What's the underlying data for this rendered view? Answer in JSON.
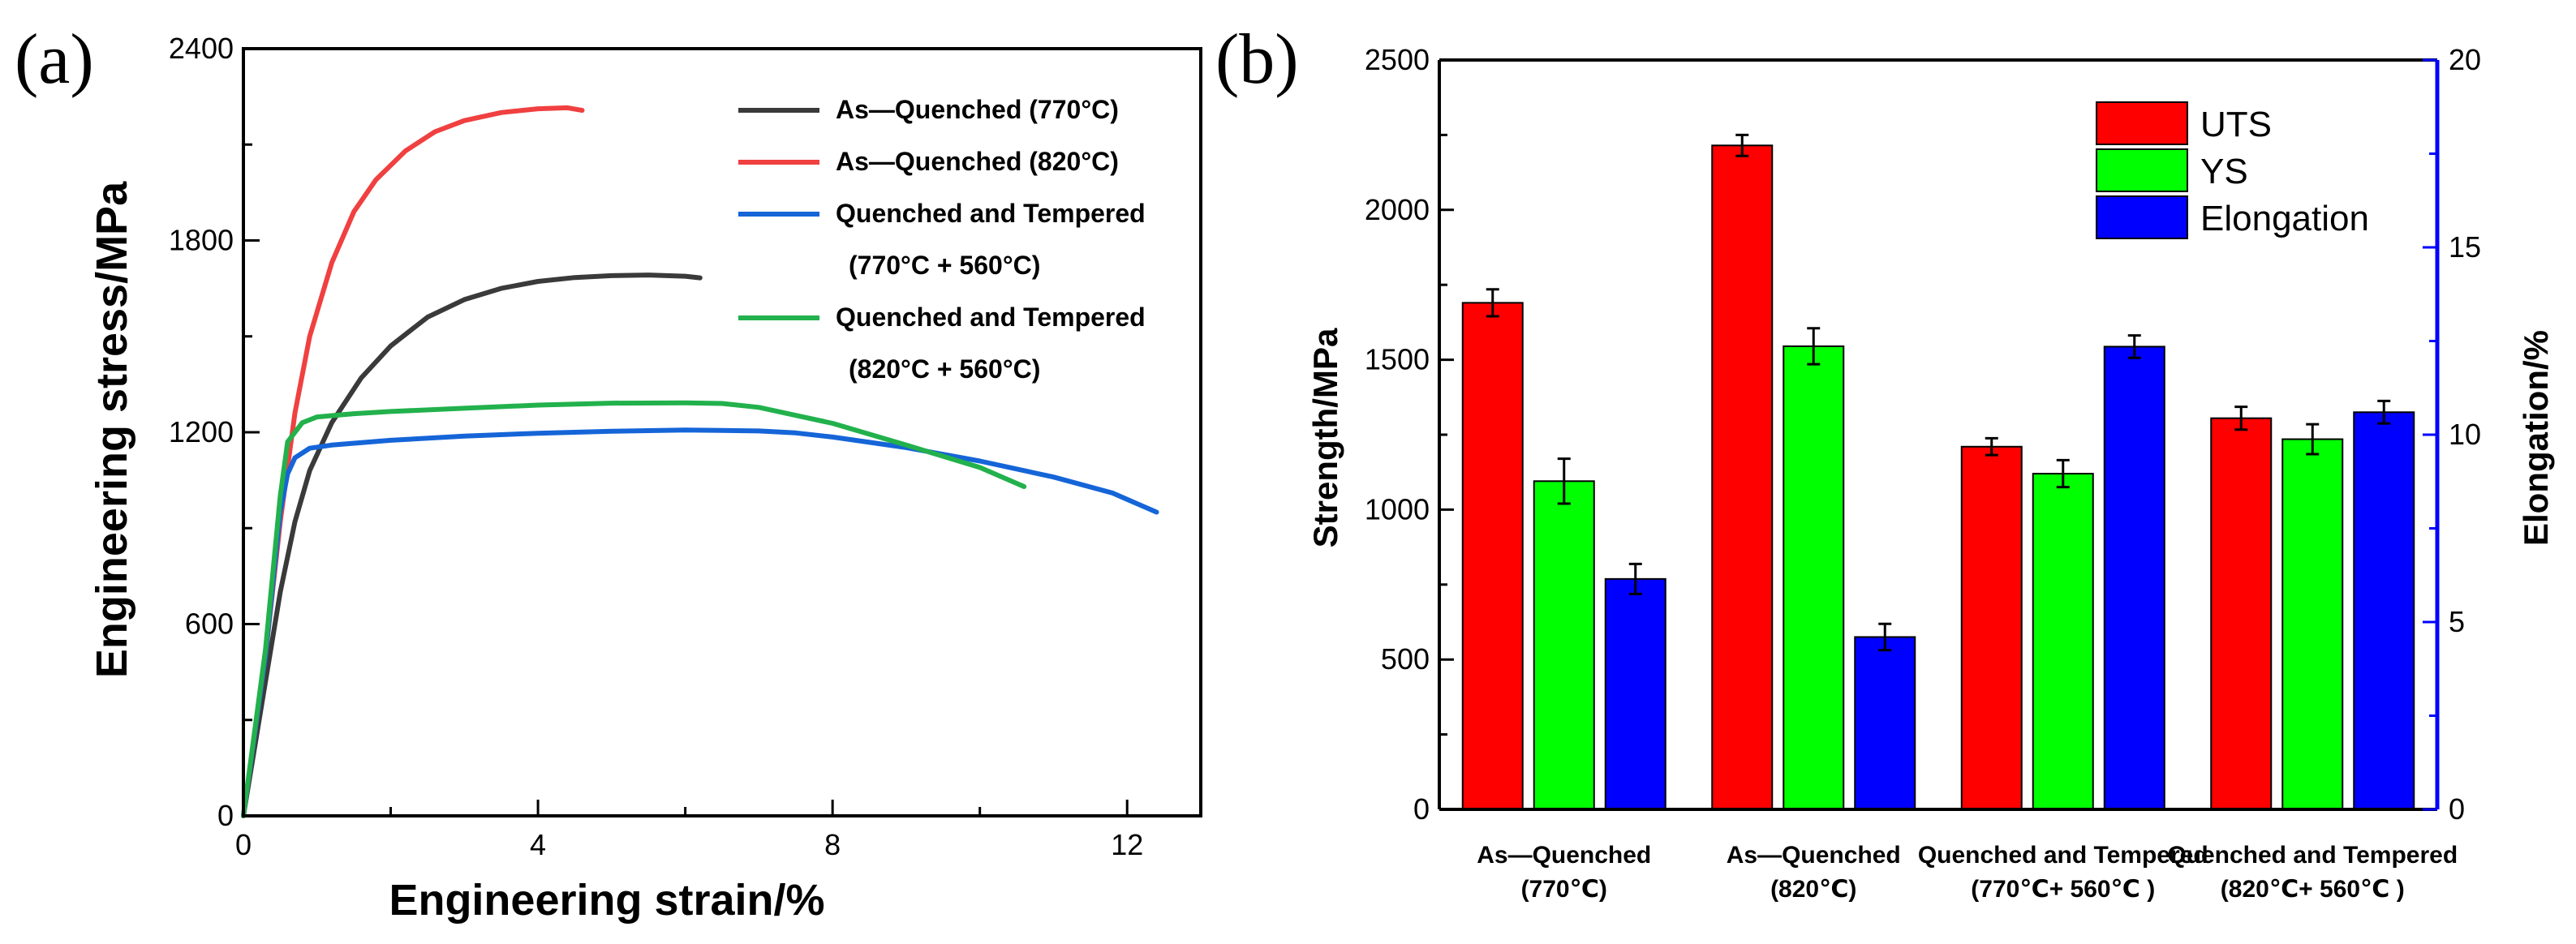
{
  "chart_data": [
    {
      "type": "line",
      "panel_label": "(a)",
      "xlabel": "Engineering strain/%",
      "ylabel": "Engineering stress/MPa",
      "xlim": [
        0,
        13
      ],
      "ylim": [
        0,
        2400
      ],
      "xticks": [
        0,
        4,
        8,
        12
      ],
      "yticks": [
        0,
        600,
        1200,
        1800,
        2400
      ],
      "legend": "top-right",
      "series": [
        {
          "name": "As—Quenched (770°C)",
          "legend_lines": [
            "As—Quenched (770°C)"
          ],
          "color": "#3a3a3a",
          "points": [
            [
              0,
              0
            ],
            [
              0.3,
              420
            ],
            [
              0.5,
              700
            ],
            [
              0.7,
              920
            ],
            [
              0.9,
              1080
            ],
            [
              1.2,
              1230
            ],
            [
              1.6,
              1370
            ],
            [
              2.0,
              1470
            ],
            [
              2.5,
              1560
            ],
            [
              3.0,
              1615
            ],
            [
              3.5,
              1650
            ],
            [
              4.0,
              1672
            ],
            [
              4.5,
              1684
            ],
            [
              5.0,
              1690
            ],
            [
              5.5,
              1692
            ],
            [
              6.0,
              1688
            ],
            [
              6.2,
              1683
            ]
          ]
        },
        {
          "name": "As—Quenched (820°C)",
          "legend_lines": [
            "As—Quenched (820°C)"
          ],
          "color": "#f04040",
          "points": [
            [
              0,
              0
            ],
            [
              0.3,
              500
            ],
            [
              0.5,
              920
            ],
            [
              0.7,
              1260
            ],
            [
              0.9,
              1500
            ],
            [
              1.2,
              1730
            ],
            [
              1.5,
              1890
            ],
            [
              1.8,
              1990
            ],
            [
              2.2,
              2080
            ],
            [
              2.6,
              2140
            ],
            [
              3.0,
              2175
            ],
            [
              3.5,
              2200
            ],
            [
              4.0,
              2212
            ],
            [
              4.4,
              2215
            ],
            [
              4.6,
              2207
            ]
          ]
        },
        {
          "name": "Quenched and Tempered (770°C + 560°C)",
          "legend_lines": [
            "Quenched and Tempered",
            "(770°C + 560°C)"
          ],
          "color": "#1565d8",
          "points": [
            [
              0,
              0
            ],
            [
              0.3,
              500
            ],
            [
              0.5,
              950
            ],
            [
              0.6,
              1070
            ],
            [
              0.7,
              1120
            ],
            [
              0.9,
              1150
            ],
            [
              1.2,
              1160
            ],
            [
              2.0,
              1175
            ],
            [
              3.0,
              1188
            ],
            [
              4.0,
              1197
            ],
            [
              5.0,
              1203
            ],
            [
              6.0,
              1207
            ],
            [
              7.0,
              1204
            ],
            [
              7.5,
              1198
            ],
            [
              8.0,
              1185
            ],
            [
              9.0,
              1152
            ],
            [
              10.0,
              1110
            ],
            [
              11.0,
              1060
            ],
            [
              11.8,
              1010
            ],
            [
              12.4,
              950
            ]
          ]
        },
        {
          "name": "Quenched and Tempered (820°C + 560°C)",
          "legend_lines": [
            "Quenched and Tempered",
            "(820°C + 560°C)"
          ],
          "color": "#22b14c",
          "points": [
            [
              0,
              0
            ],
            [
              0.3,
              520
            ],
            [
              0.5,
              1000
            ],
            [
              0.6,
              1170
            ],
            [
              0.8,
              1230
            ],
            [
              1.0,
              1248
            ],
            [
              1.5,
              1258
            ],
            [
              2.0,
              1265
            ],
            [
              3.0,
              1275
            ],
            [
              4.0,
              1285
            ],
            [
              5.0,
              1291
            ],
            [
              6.0,
              1292
            ],
            [
              6.5,
              1290
            ],
            [
              7.0,
              1278
            ],
            [
              8.0,
              1228
            ],
            [
              9.0,
              1160
            ],
            [
              10.0,
              1090
            ],
            [
              10.6,
              1030
            ]
          ]
        }
      ]
    },
    {
      "type": "bar",
      "panel_label": "(b)",
      "categories": [
        [
          "As—Quenched",
          "(770℃)"
        ],
        [
          "As—Quenched",
          "(820℃)"
        ],
        [
          "Quenched and Tempered",
          "(770℃+ 560℃ )"
        ],
        [
          "Quenched and Tempered",
          "(820℃+ 560℃ )"
        ]
      ],
      "ylabel": "Strength/MPa",
      "ylim": [
        0,
        2500
      ],
      "yticks": [
        0,
        500,
        1000,
        1500,
        2000,
        2500
      ],
      "y2label": "Elongation/%",
      "y2lim": [
        0,
        20
      ],
      "y2ticks": [
        0,
        5,
        10,
        15,
        20
      ],
      "legend": "top-right",
      "series": [
        {
          "name": "UTS",
          "axis": "left",
          "color": "#ff0000",
          "values": [
            1690,
            2215,
            1210,
            1305
          ],
          "errors": [
            45,
            35,
            28,
            38
          ]
        },
        {
          "name": "YS",
          "axis": "left",
          "color": "#00ff00",
          "values": [
            1095,
            1545,
            1120,
            1235
          ],
          "errors": [
            75,
            60,
            45,
            50
          ]
        },
        {
          "name": "Elongation",
          "axis": "right",
          "color": "#0000ff",
          "values": [
            6.15,
            4.6,
            12.35,
            10.6
          ],
          "errors": [
            0.4,
            0.35,
            0.3,
            0.3
          ]
        }
      ]
    }
  ]
}
